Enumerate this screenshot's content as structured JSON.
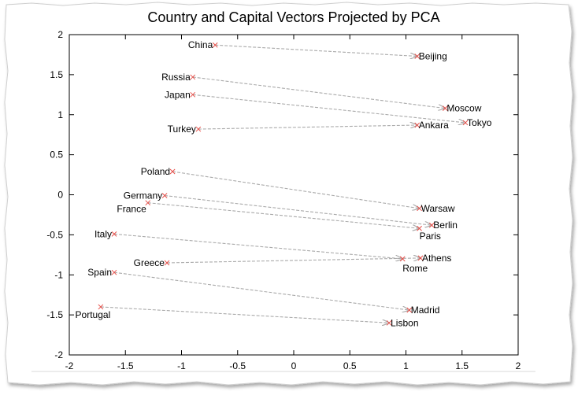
{
  "chart_data": {
    "type": "scatter",
    "title": "Country and Capital Vectors Projected by PCA",
    "xlabel": "",
    "ylabel": "",
    "xlim": [
      -2,
      2
    ],
    "ylim": [
      -2,
      2
    ],
    "xticks": [
      "-2",
      "-1.5",
      "-1",
      "-0.5",
      "0",
      "0.5",
      "1",
      "1.5",
      "2"
    ],
    "yticks": [
      "2",
      "1.5",
      "1",
      "0.5",
      "0",
      "-0.5",
      "-1",
      "-1.5",
      "-2"
    ],
    "grid": false,
    "colors": {
      "marker": "#e8504a",
      "arrow": "#aaaaaa",
      "frame": "#000000"
    },
    "pairs": [
      {
        "country": "China",
        "cx": -0.7,
        "cy": 1.87,
        "capital": "Beijing",
        "kx": 1.1,
        "ky": 1.73
      },
      {
        "country": "Russia",
        "cx": -0.9,
        "cy": 1.47,
        "capital": "Moscow",
        "kx": 1.35,
        "ky": 1.08
      },
      {
        "country": "Japan",
        "cx": -0.9,
        "cy": 1.25,
        "capital": "Tokyo",
        "kx": 1.53,
        "ky": 0.9
      },
      {
        "country": "Turkey",
        "cx": -0.85,
        "cy": 0.82,
        "capital": "Ankara",
        "kx": 1.1,
        "ky": 0.87
      },
      {
        "country": "Poland",
        "cx": -1.08,
        "cy": 0.29,
        "capital": "Warsaw",
        "kx": 1.12,
        "ky": -0.17
      },
      {
        "country": "Germany",
        "cx": -1.15,
        "cy": -0.01,
        "capital": "Berlin",
        "kx": 1.23,
        "ky": -0.38
      },
      {
        "country": "France",
        "cx": -1.3,
        "cy": -0.1,
        "capital": "Paris",
        "kx": 1.12,
        "ky": -0.42
      },
      {
        "country": "Italy",
        "cx": -1.6,
        "cy": -0.49,
        "capital": "Rome",
        "kx": 0.97,
        "ky": -0.8
      },
      {
        "country": "Greece",
        "cx": -1.13,
        "cy": -0.85,
        "capital": "Athens",
        "kx": 1.13,
        "ky": -0.79
      },
      {
        "country": "Spain",
        "cx": -1.6,
        "cy": -0.97,
        "capital": "Madrid",
        "kx": 1.03,
        "ky": -1.44
      },
      {
        "country": "Portugal",
        "cx": -1.72,
        "cy": -1.4,
        "capital": "Lisbon",
        "kx": 0.85,
        "ky": -1.6
      }
    ]
  }
}
